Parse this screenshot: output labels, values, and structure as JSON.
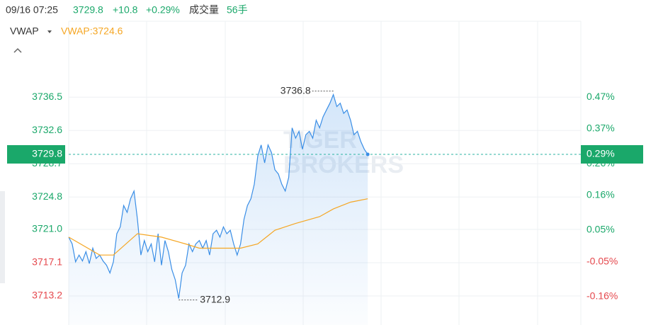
{
  "header": {
    "time": "09/16 07:25",
    "price": "3729.8",
    "change": "+10.8",
    "change_pct": "+0.29%",
    "volume_label": "成交量",
    "volume": "56手"
  },
  "chart_data": {
    "type": "line",
    "indicator_label": "VWAP:3724.6",
    "watermark": [
      "TIGER",
      "BROKERS"
    ],
    "last_pct_label": "0.29%",
    "grid": true,
    "xlim": [
      0,
      149
    ],
    "ylim": [
      3709.8,
      3745.4
    ],
    "yticks": [
      {
        "value": 3713.2,
        "label": "3713.2"
      },
      {
        "value": 3717.1,
        "label": "3717.1"
      },
      {
        "value": 3721.0,
        "label": "3721.0"
      },
      {
        "value": 3724.8,
        "label": "3724.8"
      },
      {
        "value": 3728.7,
        "label": "3728.7"
      },
      {
        "value": 3732.6,
        "label": "3732.6"
      },
      {
        "value": 3736.5,
        "label": "3736.5"
      }
    ],
    "y2lim": [
      -0.25,
      0.71
    ],
    "y2ticks": [
      {
        "value": -0.16,
        "label": "-0.16%"
      },
      {
        "value": -0.05,
        "label": "-0.05%"
      },
      {
        "value": 0.05,
        "label": "0.05%"
      },
      {
        "value": 0.16,
        "label": "0.16%"
      },
      {
        "value": 0.26,
        "label": "0.26%"
      },
      {
        "value": 0.37,
        "label": "0.37%"
      },
      {
        "value": 0.47,
        "label": "0.47%"
      }
    ],
    "high_index": 77,
    "low_index": 32,
    "series": [
      {
        "color": "#3a8ee6",
        "x": [
          0,
          1,
          2,
          3,
          4,
          5,
          6,
          7,
          8,
          9,
          10,
          11,
          12,
          13,
          14,
          15,
          16,
          17,
          18,
          19,
          20,
          21,
          22,
          23,
          24,
          25,
          26,
          27,
          28,
          29,
          30,
          31,
          32,
          33,
          34,
          35,
          36,
          37,
          38,
          39,
          40,
          41,
          42,
          43,
          44,
          45,
          46,
          47,
          48,
          49,
          50,
          51,
          52,
          53,
          54,
          55,
          56,
          57,
          58,
          59,
          60,
          61,
          62,
          63,
          64,
          65,
          66,
          67,
          68,
          69,
          70,
          71,
          72,
          73,
          74,
          75,
          76,
          77,
          78,
          79,
          80,
          81,
          82,
          83,
          84,
          85,
          86,
          87
        ],
        "values": [
          3720.1,
          3719.3,
          3717.2,
          3718.0,
          3717.3,
          3718.4,
          3717.0,
          3718.8,
          3717.6,
          3718.0,
          3717.3,
          3716.8,
          3715.9,
          3717.2,
          3720.5,
          3721.3,
          3723.8,
          3723.0,
          3724.6,
          3725.5,
          3722.2,
          3718.0,
          3719.7,
          3718.4,
          3719.3,
          3717.2,
          3720.5,
          3716.8,
          3719.7,
          3718.4,
          3716.3,
          3715.1,
          3712.9,
          3715.9,
          3716.8,
          3719.3,
          3718.4,
          3719.3,
          3719.7,
          3718.8,
          3719.7,
          3718.0,
          3720.5,
          3720.9,
          3720.1,
          3721.3,
          3720.5,
          3720.9,
          3719.3,
          3718.0,
          3719.3,
          3722.2,
          3723.8,
          3724.6,
          3726.3,
          3729.6,
          3730.9,
          3728.8,
          3730.9,
          3730.0,
          3728.0,
          3727.5,
          3726.3,
          3725.5,
          3727.1,
          3732.9,
          3731.7,
          3732.5,
          3730.4,
          3732.1,
          3732.5,
          3731.7,
          3733.8,
          3732.9,
          3734.2,
          3735.0,
          3735.8,
          3736.8,
          3735.4,
          3735.8,
          3734.6,
          3735.0,
          3733.8,
          3732.1,
          3732.5,
          3731.3,
          3730.4,
          3729.8
        ]
      },
      {
        "name": "VWAP",
        "color": "#f5a623",
        "x": [
          0,
          9,
          13,
          20,
          27,
          34,
          38,
          50,
          55,
          60,
          66,
          73,
          77,
          82,
          87
        ],
        "values": [
          3720.1,
          3718.0,
          3718.0,
          3720.5,
          3720.1,
          3719.3,
          3718.8,
          3718.8,
          3719.3,
          3720.9,
          3721.7,
          3722.5,
          3723.4,
          3724.2,
          3724.6
        ]
      }
    ]
  }
}
